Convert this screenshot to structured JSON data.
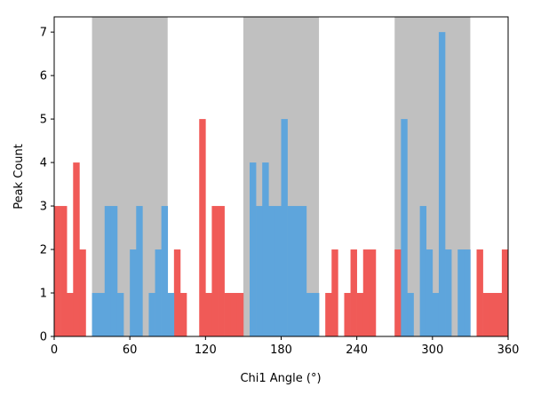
{
  "chart_data": {
    "type": "bar",
    "title": "",
    "xlabel": "Chi1 Angle (°)",
    "ylabel": "Peak Count",
    "xlim": [
      0,
      360
    ],
    "ylim": [
      0,
      7.35
    ],
    "xticks": [
      0,
      60,
      120,
      180,
      240,
      300,
      360
    ],
    "yticks": [
      0,
      1,
      2,
      3,
      4,
      5,
      6,
      7
    ],
    "grid": false,
    "legend": "none",
    "bin_width": 5,
    "bin_starts": [
      0,
      5,
      10,
      15,
      20,
      25,
      30,
      35,
      40,
      45,
      50,
      55,
      60,
      65,
      70,
      75,
      80,
      85,
      90,
      95,
      100,
      105,
      110,
      115,
      120,
      125,
      130,
      135,
      140,
      145,
      150,
      155,
      160,
      165,
      170,
      175,
      180,
      185,
      190,
      195,
      200,
      205,
      210,
      215,
      220,
      225,
      230,
      235,
      240,
      245,
      250,
      255,
      260,
      265,
      270,
      275,
      280,
      285,
      290,
      295,
      300,
      305,
      310,
      315,
      320,
      325,
      330,
      335,
      340,
      345,
      350,
      355
    ],
    "shaded_regions": [
      [
        30,
        90
      ],
      [
        150,
        210
      ],
      [
        270,
        330
      ]
    ],
    "series": [
      {
        "color": "#f05a57",
        "values": [
          3,
          3,
          1,
          4,
          2,
          0,
          0,
          0,
          0,
          0,
          0,
          0,
          0,
          0,
          0,
          0,
          0,
          0,
          0,
          2,
          1,
          0,
          0,
          5,
          1,
          3,
          3,
          1,
          1,
          1,
          0,
          0,
          0,
          0,
          0,
          0,
          0,
          0,
          0,
          0,
          0,
          0,
          0,
          1,
          2,
          0,
          1,
          2,
          1,
          2,
          2,
          0,
          0,
          0,
          2,
          0,
          0,
          0,
          0,
          0,
          0,
          0,
          0,
          0,
          0,
          0,
          0,
          2,
          1,
          1,
          1,
          2
        ]
      },
      {
        "color": "#5ea5dc",
        "values": [
          0,
          0,
          0,
          0,
          0,
          0,
          1,
          1,
          3,
          3,
          1,
          0,
          2,
          3,
          0,
          1,
          2,
          3,
          1,
          0,
          0,
          0,
          0,
          0,
          0,
          0,
          0,
          0,
          0,
          0,
          0,
          4,
          3,
          4,
          3,
          3,
          5,
          3,
          3,
          3,
          1,
          1,
          0,
          0,
          0,
          0,
          0,
          0,
          0,
          0,
          0,
          0,
          0,
          0,
          0,
          5,
          1,
          0,
          3,
          2,
          1,
          7,
          2,
          0,
          2,
          2,
          0,
          0,
          0,
          0,
          0,
          0
        ]
      }
    ],
    "shade_color": "#c0c0c0"
  }
}
